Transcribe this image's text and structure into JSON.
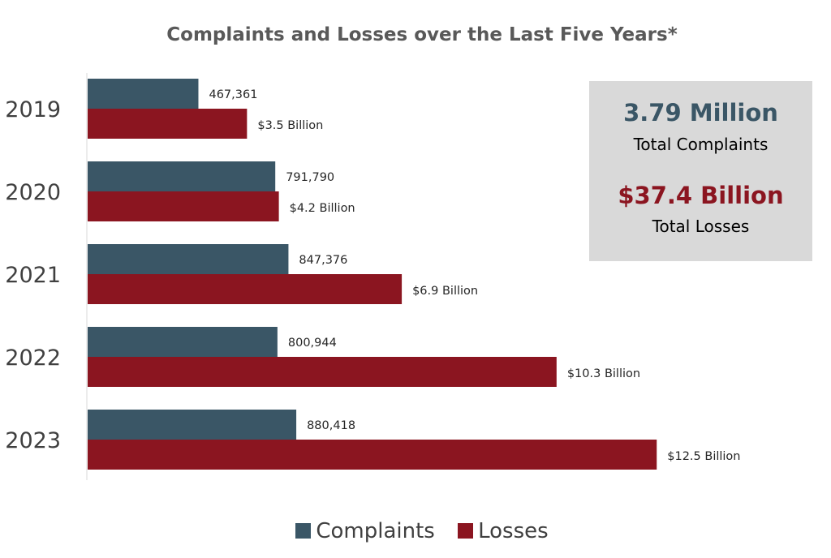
{
  "chart_data": {
    "type": "bar",
    "orientation": "horizontal",
    "title": "Complaints and Losses over the Last Five Years*",
    "categories": [
      "2019",
      "2020",
      "2021",
      "2022",
      "2023"
    ],
    "series": [
      {
        "name": "Complaints",
        "color": "#3a5666",
        "values": [
          467361,
          791790,
          847376,
          800944,
          880418
        ],
        "labels": [
          "467,361",
          "791,790",
          "847,376",
          "800,944",
          "880,418"
        ]
      },
      {
        "name": "Losses",
        "color": "#8b1520",
        "values": [
          3.5,
          4.2,
          6.9,
          10.3,
          12.5
        ],
        "unit": "Billion USD",
        "labels": [
          "$3.5 Billion",
          "$4.2 Billion",
          "$6.9 Billion",
          "$10.3 Billion",
          "$12.5 Billion"
        ]
      }
    ],
    "legend": "bottom-center",
    "grid": false
  },
  "summary": {
    "complaints_value": "3.79 Million",
    "complaints_label": "Total Complaints",
    "losses_value": "$37.4 Billion",
    "losses_label": "Total Losses"
  },
  "legend": {
    "complaints": "Complaints",
    "losses": "Losses"
  }
}
